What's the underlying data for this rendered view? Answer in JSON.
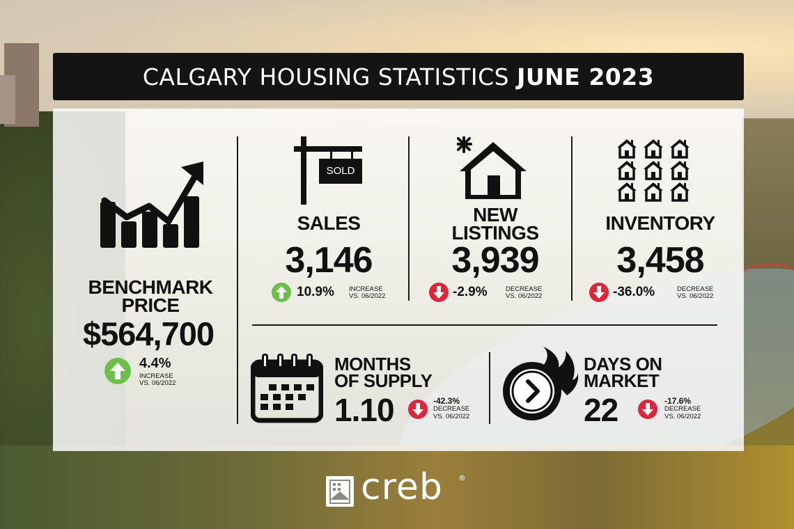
{
  "title": {
    "main": "CALGARY HOUSING STATISTICS",
    "date": "JUNE 2023"
  },
  "benchmark": {
    "label_line1": "BENCHMARK",
    "label_line2": "PRICE",
    "value": "$564,700",
    "change": "4.4%",
    "direction": "INCREASE",
    "compare": "VS. 06/2022"
  },
  "sales": {
    "sign": "SOLD",
    "label": "SALES",
    "value": "3,146",
    "change": "10.9%",
    "direction": "INCREASE",
    "compare": "VS. 06/2022"
  },
  "new_listings": {
    "label_line1": "NEW",
    "label_line2": "LISTINGS",
    "value": "3,939",
    "change": "-2.9%",
    "direction": "DECREASE",
    "compare": "VS. 06/2022"
  },
  "inventory": {
    "label": "INVENTORY",
    "value": "3,458",
    "change": "-36.0%",
    "direction": "DECREASE",
    "compare": "VS. 06/2022"
  },
  "months_of_supply": {
    "label_line1": "MONTHS",
    "label_line2": "OF SUPPLY",
    "value": "1.10",
    "change": "-42.3%",
    "direction": "DECREASE",
    "compare": "VS. 06/2022"
  },
  "days_on_market": {
    "label_line1": "DAYS ON",
    "label_line2": "MARKET",
    "value": "22",
    "change": "-17.6%",
    "direction": "DECREASE",
    "compare": "VS. 06/2022"
  },
  "logo": {
    "text": "creb",
    "registered": "®"
  },
  "colors": {
    "increase": "#6cc04a",
    "decrease": "#e0243a",
    "title_bar": "#141414"
  },
  "icons": [
    "trend-chart-icon",
    "sold-sign-icon",
    "new-house-icon",
    "houses-grid-icon",
    "calendar-icon",
    "clock-icon",
    "arrow-up-icon",
    "arrow-down-icon"
  ]
}
